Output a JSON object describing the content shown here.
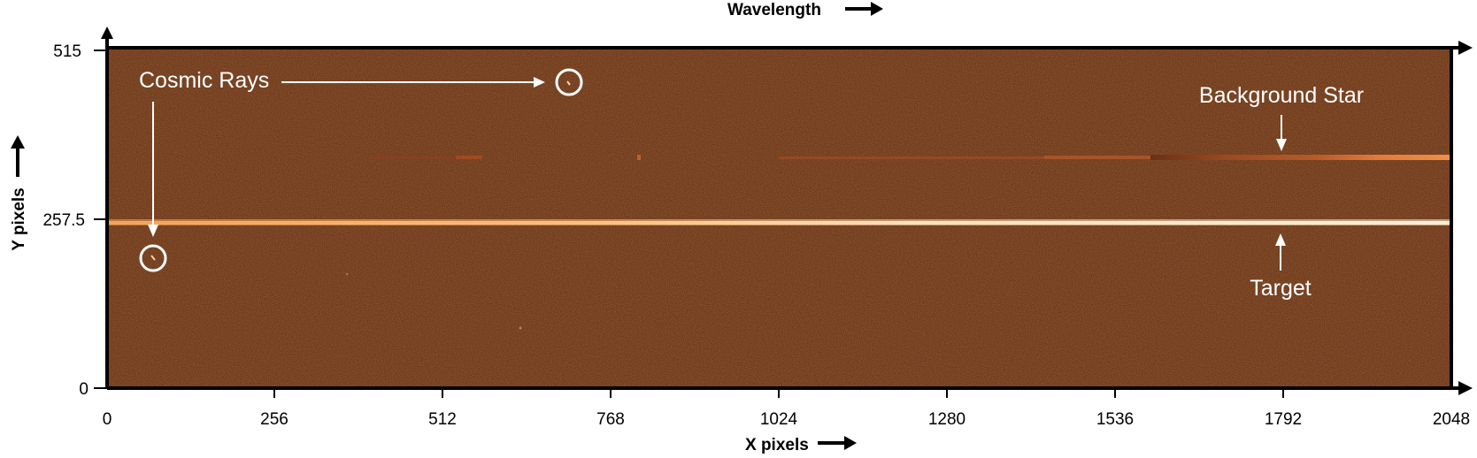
{
  "figure": {
    "top_label": "Wavelength",
    "x_label": "X pixels",
    "y_label": "Y pixels",
    "x_ticks": [
      "0",
      "256",
      "512",
      "768",
      "1024",
      "1280",
      "1536",
      "1792",
      "2048"
    ],
    "y_ticks": [
      "515",
      "257.5",
      "0"
    ],
    "annotations": {
      "cosmic_rays": "Cosmic Rays",
      "background_star": "Background Star",
      "target": "Target"
    },
    "colors": {
      "background": "#5e2a10",
      "target_trace": "#ffcf96",
      "star_trace": "#e88a4a",
      "annotation": "#ffffff"
    }
  }
}
